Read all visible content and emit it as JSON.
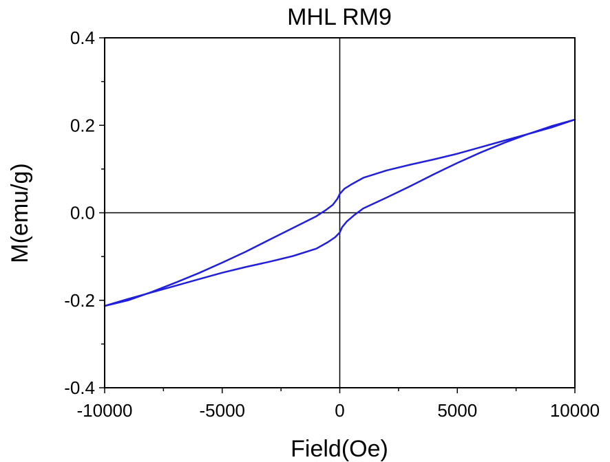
{
  "chart_data": {
    "type": "line",
    "title": "MHL RM9",
    "xlabel": "Field(Oe)",
    "ylabel": "M(emu/g)",
    "xlim": [
      -10000,
      10000
    ],
    "ylim": [
      -0.4,
      0.4
    ],
    "x_ticks": [
      -10000,
      -5000,
      0,
      5000,
      10000
    ],
    "x_tick_labels": [
      "-10000",
      "-5000",
      "0",
      "5000",
      "10000"
    ],
    "y_ticks": [
      -0.4,
      -0.2,
      0.0,
      0.2,
      0.4
    ],
    "y_tick_labels": [
      "-0.4",
      "-0.2",
      "0.0",
      "0.2",
      "0.4"
    ],
    "x_minor_step": 2500,
    "y_minor_step": 0.1,
    "zero_lines": true,
    "grid": false,
    "series_color": "#1f1fdc",
    "series": [
      {
        "branch": "descending",
        "x": [
          10000,
          9000,
          8000,
          7000,
          6000,
          5000,
          4000,
          3000,
          2000,
          1000,
          500,
          200,
          0,
          -100,
          -300,
          -600,
          -1000,
          -2000,
          -3000,
          -4000,
          -5000,
          -6000,
          -7000,
          -8000,
          -9000,
          -10000
        ],
        "y": [
          0.213,
          0.195,
          0.18,
          0.165,
          0.15,
          0.135,
          0.122,
          0.11,
          0.097,
          0.08,
          0.065,
          0.055,
          0.043,
          0.032,
          0.018,
          0.006,
          -0.008,
          -0.035,
          -0.062,
          -0.089,
          -0.114,
          -0.138,
          -0.16,
          -0.181,
          -0.2,
          -0.213
        ]
      },
      {
        "branch": "ascending",
        "x": [
          -10000,
          -9000,
          -8000,
          -7000,
          -6000,
          -5000,
          -4000,
          -3000,
          -2000,
          -1000,
          -500,
          -200,
          0,
          100,
          300,
          600,
          1000,
          2000,
          3000,
          4000,
          5000,
          6000,
          7000,
          8000,
          9000,
          10000
        ],
        "y": [
          -0.213,
          -0.197,
          -0.182,
          -0.167,
          -0.152,
          -0.137,
          -0.124,
          -0.112,
          -0.099,
          -0.082,
          -0.067,
          -0.056,
          -0.045,
          -0.033,
          -0.02,
          -0.006,
          0.01,
          0.035,
          0.061,
          0.088,
          0.114,
          0.138,
          0.16,
          0.18,
          0.198,
          0.213
        ]
      }
    ]
  }
}
